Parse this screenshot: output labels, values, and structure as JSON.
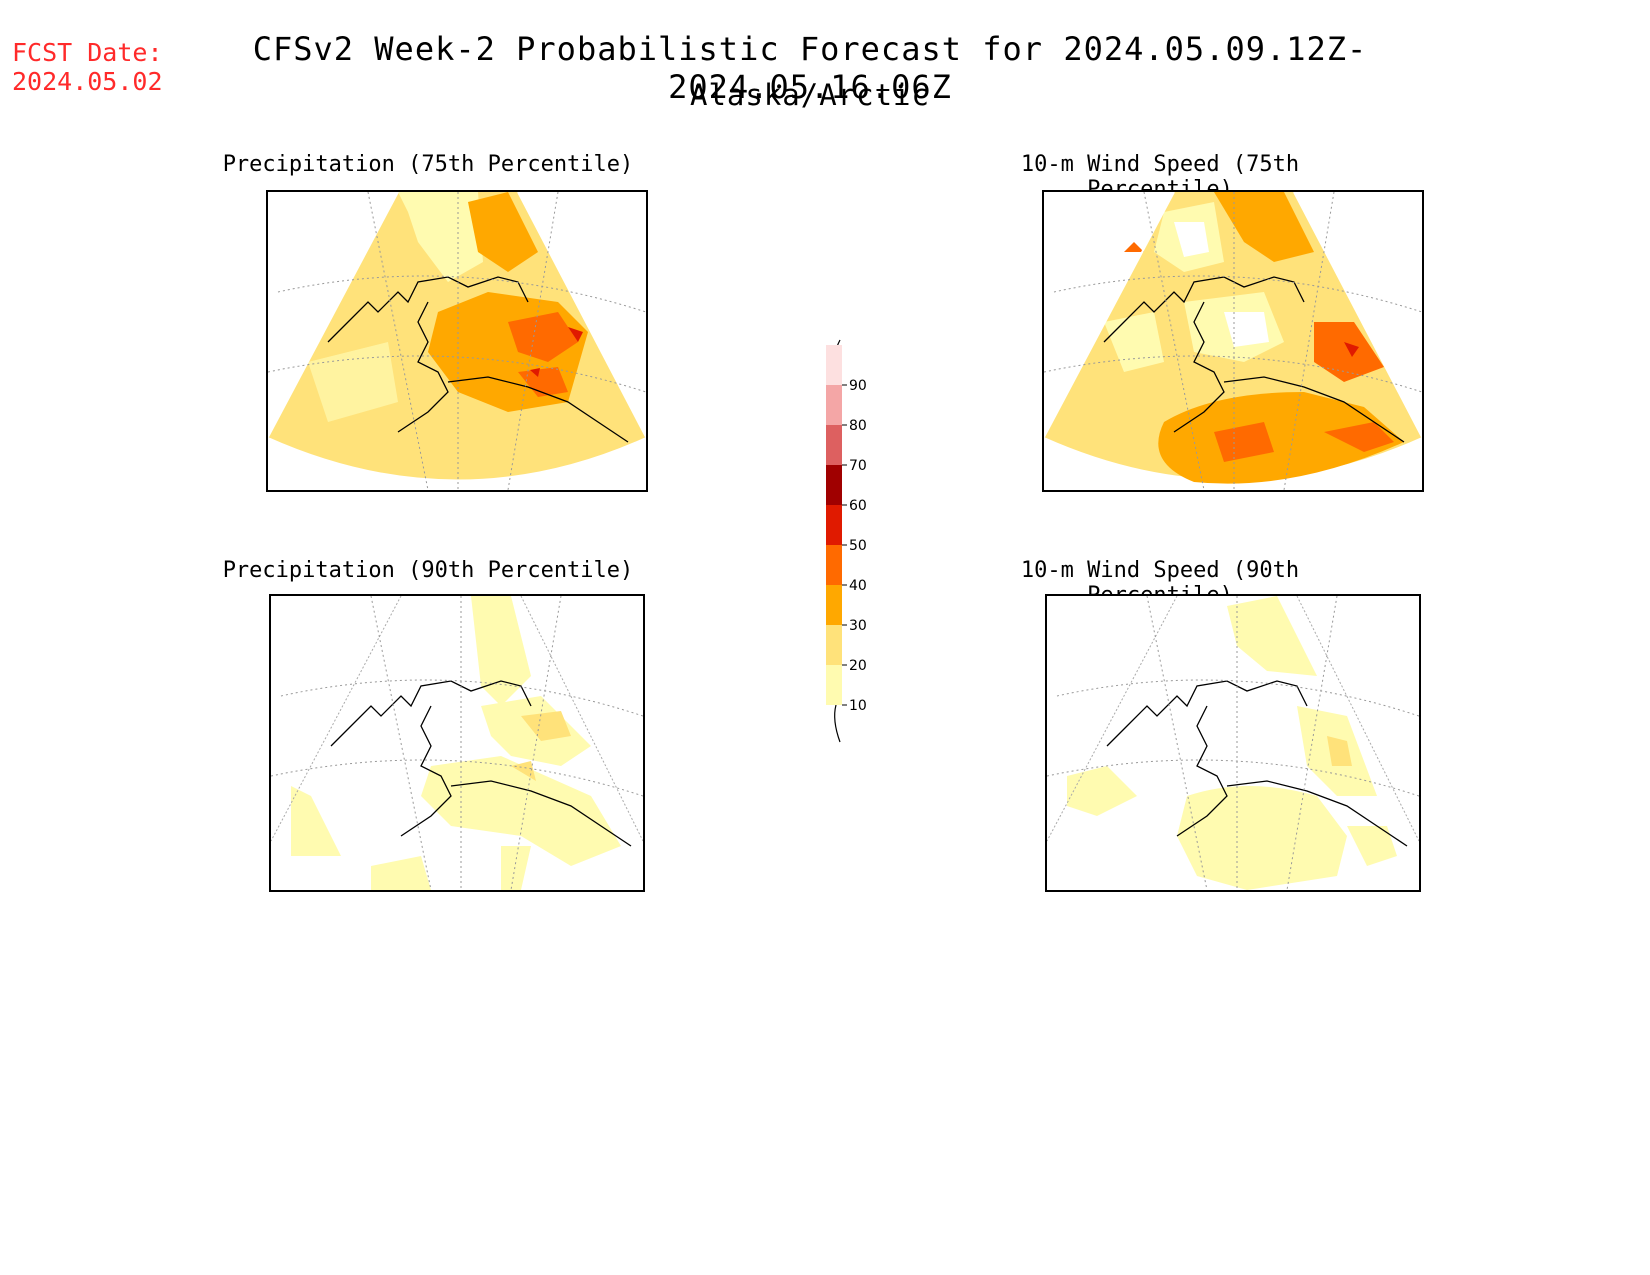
{
  "header": {
    "fcst_label": "FCST Date:",
    "fcst_date": "2024.05.02",
    "title": "CFSv2 Week-2 Probabilistic Forecast for 2024.05.09.12Z-2024.05.16.06Z",
    "subtitle": "Alaska/Arctic"
  },
  "panels": {
    "precip75": {
      "title": "Precipitation (75th Percentile)"
    },
    "wind75": {
      "title": "10-m Wind Speed (75th Percentile)"
    },
    "precip90": {
      "title": "Precipitation (90th Percentile)"
    },
    "wind90": {
      "title": "10-m Wind Speed (90th Percentile)"
    }
  },
  "colorbar": {
    "levels": [
      "10",
      "20",
      "30",
      "40",
      "50",
      "60",
      "70",
      "80",
      "90"
    ],
    "colors": {
      "c10": "#fffbb0",
      "c20": "#ffe27a",
      "c30": "#ffa800",
      "c40": "#ff6a00",
      "c50": "#e01a00",
      "c60": "#a00000",
      "c70": "#dd6060",
      "c80": "#f4a6a6",
      "c90": "#fde0e0"
    }
  }
}
